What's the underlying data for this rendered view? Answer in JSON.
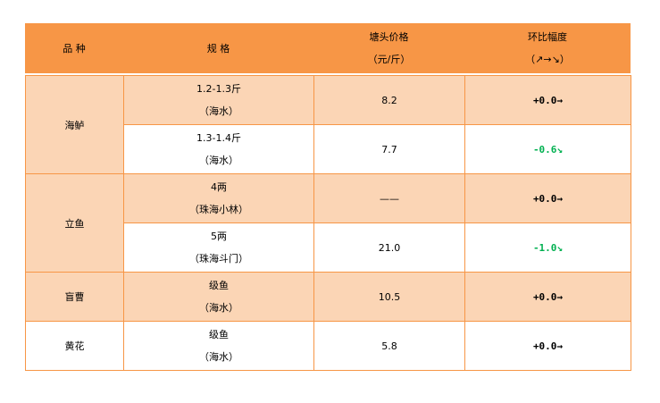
{
  "header": {
    "variety": "品 种",
    "spec": "规 格",
    "price": "塘头价格",
    "price_unit": "（元/斤）",
    "change": "环比幅度",
    "change_legend": "（↗→↘）"
  },
  "colors": {
    "header_bg": "#F79646",
    "band": "#FBD5B5",
    "border": "#F79646",
    "down": "#00B050",
    "flat": "#000000"
  },
  "rows": [
    {
      "variety": "海鲈",
      "spec1": "1.2-1.3斤",
      "spec2": "（海水）",
      "price": "8.2",
      "change": "+0.0→",
      "trend": "flat"
    },
    {
      "spec1": "1.3-1.4斤",
      "spec2": "（海水）",
      "price": "7.7",
      "change": "-0.6↘",
      "trend": "down"
    },
    {
      "variety": "立鱼",
      "spec1": "4两",
      "spec2": "（珠海小林）",
      "price": "——",
      "change": "+0.0→",
      "trend": "flat"
    },
    {
      "spec1": "5两",
      "spec2": "（珠海斗门）",
      "price": "21.0",
      "change": "-1.0↘",
      "trend": "down"
    },
    {
      "variety": "盲曹",
      "spec1": "级鱼",
      "spec2": "（海水）",
      "price": "10.5",
      "change": "+0.0→",
      "trend": "flat"
    },
    {
      "variety": "黄花",
      "spec1": "级鱼",
      "spec2": "（海水）",
      "price": "5.8",
      "change": "+0.0→",
      "trend": "flat"
    }
  ]
}
